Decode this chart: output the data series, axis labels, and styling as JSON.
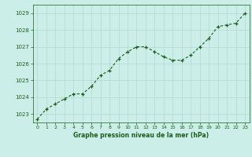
{
  "x": [
    0,
    1,
    2,
    3,
    4,
    5,
    6,
    7,
    8,
    9,
    10,
    11,
    12,
    13,
    14,
    15,
    16,
    17,
    18,
    19,
    20,
    21,
    22,
    23
  ],
  "y": [
    1022.7,
    1023.3,
    1023.6,
    1023.9,
    1024.2,
    1024.2,
    1024.65,
    1025.3,
    1025.6,
    1026.3,
    1026.7,
    1027.0,
    1027.0,
    1026.7,
    1026.4,
    1026.2,
    1026.2,
    1026.5,
    1027.0,
    1027.5,
    1028.2,
    1028.3,
    1028.4,
    1029.0
  ],
  "ylim_min": 1022.5,
  "ylim_max": 1029.5,
  "yticks": [
    1023,
    1024,
    1025,
    1026,
    1027,
    1028,
    1029
  ],
  "xticks": [
    0,
    1,
    2,
    3,
    4,
    5,
    6,
    7,
    8,
    9,
    10,
    11,
    12,
    13,
    14,
    15,
    16,
    17,
    18,
    19,
    20,
    21,
    22,
    23
  ],
  "line_color": "#1a5c1a",
  "bg_color": "#cceee8",
  "grid_color": "#b0d8d0",
  "xlabel": "Graphe pression niveau de la mer (hPa)",
  "xlabel_color": "#1a5c1a",
  "tick_color": "#1a5c1a",
  "spine_color": "#1a5c1a",
  "fig_bg": "#cceee8"
}
